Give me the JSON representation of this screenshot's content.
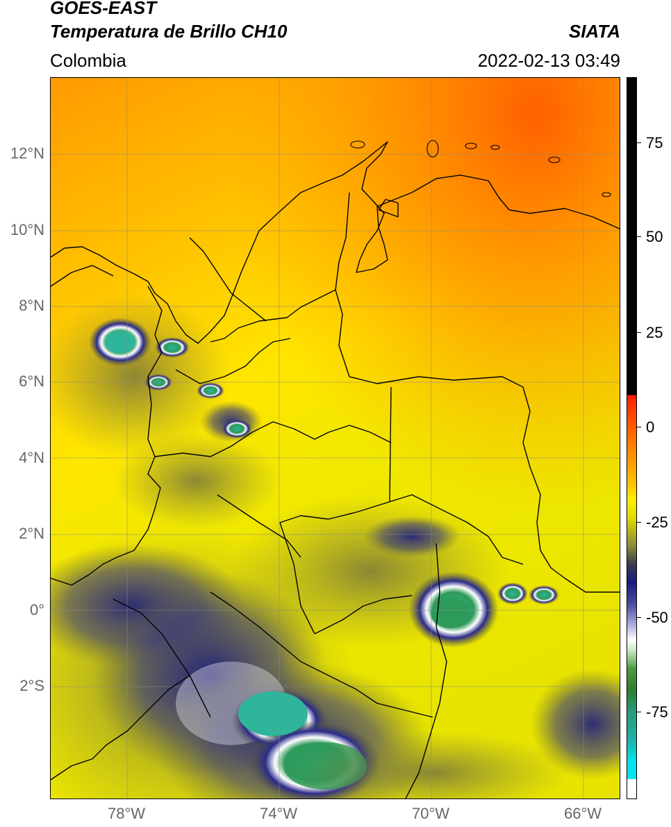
{
  "header": {
    "line1": "GOES-EAST",
    "line2": "Temperatura de Brillo CH10",
    "org": "SIATA",
    "region": "Colombia",
    "datetime": "2022-02-13 03:49"
  },
  "map": {
    "lat_ticks": [
      "12°N",
      "10°N",
      "8°N",
      "6°N",
      "4°N",
      "2°N",
      "0°",
      "2°S"
    ],
    "lon_ticks": [
      "78°W",
      "74°W",
      "70°W",
      "66°W"
    ],
    "gridlines": true
  },
  "colorbar": {
    "ticks": [
      "75",
      "50",
      "25",
      "0",
      "-25",
      "-50",
      "-75"
    ],
    "range": [
      -95,
      90
    ],
    "colors": {
      "top": "#000000",
      "red": "#ff1a00",
      "orange": "#ff8c00",
      "yellow": "#ffee00",
      "olive": "#8a8a3a",
      "navy": "#1a1a80",
      "white": "#ffffff",
      "green": "#2e7d32",
      "teal": "#20b2aa",
      "cyan": "#00e5ee"
    }
  }
}
